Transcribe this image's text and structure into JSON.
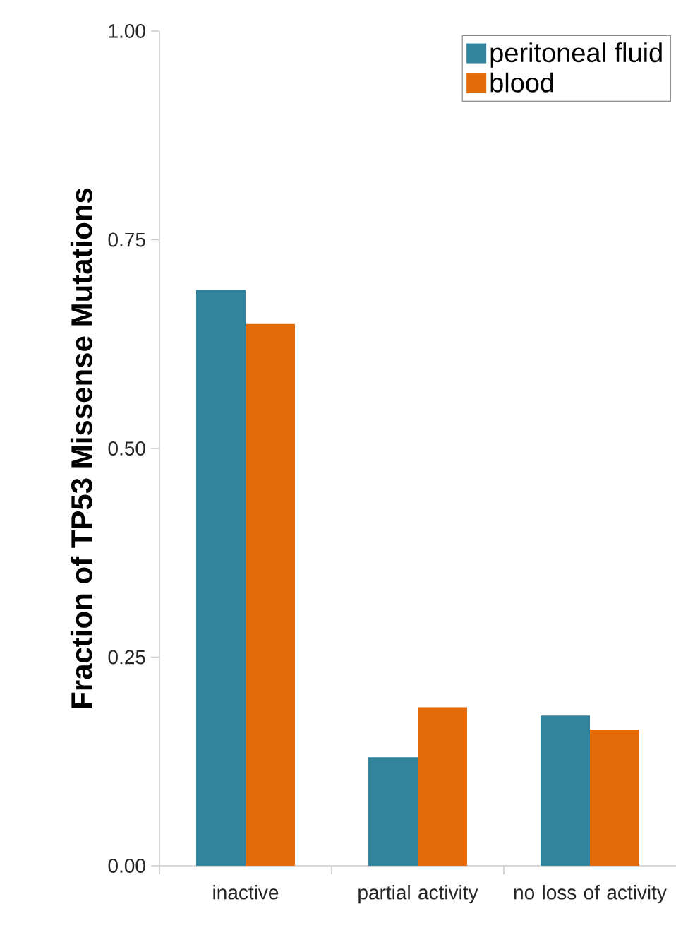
{
  "chart_data": {
    "type": "bar",
    "ylabel": "Fraction of  TP53 Missense Mutations",
    "categories": [
      "inactive",
      "partial activity",
      "no loss of activity"
    ],
    "series": [
      {
        "name": "peritoneal fluid",
        "color": "#32849c",
        "values": [
          0.69,
          0.13,
          0.18
        ]
      },
      {
        "name": "blood",
        "color": "#e36c0a",
        "values": [
          0.649,
          0.19,
          0.163
        ]
      }
    ],
    "ylim": [
      0,
      1
    ],
    "yticks": [
      {
        "value": 0,
        "label": "0.00"
      },
      {
        "value": 0.25,
        "label": "0.25"
      },
      {
        "value": 0.5,
        "label": "0.50"
      },
      {
        "value": 0.75,
        "label": "0.75"
      },
      {
        "value": 1,
        "label": "1.00"
      }
    ],
    "legend": "top right"
  }
}
